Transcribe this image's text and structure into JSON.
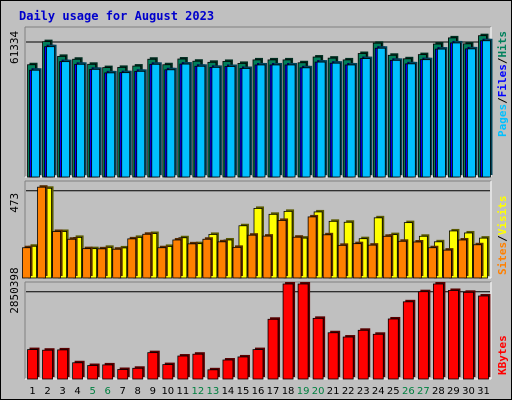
{
  "chart_data": {
    "type": "bar",
    "title": "Daily usage for August 2023",
    "days": [
      "1",
      "2",
      "3",
      "4",
      "5",
      "6",
      "7",
      "8",
      "9",
      "10",
      "11",
      "12",
      "13",
      "14",
      "15",
      "16",
      "17",
      "18",
      "19",
      "20",
      "21",
      "22",
      "23",
      "24",
      "25",
      "26",
      "27",
      "28",
      "29",
      "30",
      "31"
    ],
    "weekend_days": [
      "5",
      "6",
      "12",
      "13",
      "19",
      "20",
      "26",
      "27"
    ],
    "colors": {
      "title": "#0000cc",
      "weekday_label": "#000000",
      "weekend_label": "#008040",
      "hits": "#00805c",
      "files": "#0000ff",
      "pages": "#00c0ff",
      "visits": "#ffff00",
      "sites": "#ff8000",
      "kbytes": "#ff0000"
    },
    "panels": [
      {
        "id": "requests",
        "ytick": "61334",
        "ymax": 61334,
        "series": [
          {
            "name": "Hits",
            "values": [
              51000,
              61500,
              54800,
              53500,
              51200,
              49700,
              49800,
              50400,
              53500,
              51000,
              53600,
              52600,
              52100,
              52500,
              51600,
              53200,
              53200,
              53200,
              51900,
              54500,
              54000,
              53200,
              56100,
              60800,
              55300,
              53700,
              55600,
              60400,
              63200,
              60500,
              64200
            ]
          },
          {
            "name": "Files",
            "values": [
              48500,
              59200,
              52400,
              51200,
              48900,
              47300,
              47400,
              48000,
              51200,
              48700,
              51300,
              50300,
              49800,
              50200,
              49300,
              50900,
              50900,
              50900,
              49600,
              52200,
              51700,
              50900,
              53800,
              58500,
              53000,
              51400,
              53300,
              58100,
              60900,
              58200,
              61900
            ]
          },
          {
            "name": "Pages",
            "values": [
              48500,
              59200,
              52400,
              51200,
              48900,
              47300,
              47400,
              48000,
              51200,
              48700,
              51300,
              50300,
              49800,
              50200,
              49300,
              50900,
              50900,
              50900,
              49600,
              52200,
              51700,
              50900,
              53800,
              58500,
              53000,
              51400,
              53300,
              58100,
              60900,
              58200,
              61900
            ]
          }
        ],
        "legend": [
          "Pages",
          "Files",
          "Hits"
        ]
      },
      {
        "id": "visitors",
        "ytick": "473",
        "ymax": 473,
        "series": [
          {
            "name": "Visits",
            "values": [
              172,
              486,
              252,
              220,
              159,
              166,
              163,
              220,
              241,
              171,
              218,
              186,
              236,
              206,
              283,
              377,
              345,
              361,
              216,
              358,
              307,
              302,
              213,
              326,
              235,
              300,
              226,
              196,
              255,
              244,
              216
            ]
          },
          {
            "name": "Sites",
            "values": [
              164,
              492,
              252,
              210,
              159,
              158,
              156,
              212,
              237,
              164,
              206,
              185,
              210,
              196,
              166,
              232,
              227,
              312,
              221,
              331,
              234,
              177,
              186,
              178,
              226,
              199,
              195,
              164,
              151,
              206,
              180
            ]
          }
        ],
        "legend": [
          "Sites",
          "Visits"
        ]
      },
      {
        "id": "traffic",
        "ytick": "2850398",
        "ymax": 2850398,
        "series": [
          {
            "name": "KBytes",
            "values": [
              960000,
              940000,
              950000,
              530000,
              440000,
              460000,
              310000,
              350000,
              860000,
              470000,
              750000,
              810000,
              300000,
              620000,
              720000,
              960000,
              1950000,
              3170000,
              3110000,
              1980000,
              1510000,
              1370000,
              1590000,
              1460000,
              1960000,
              2520000,
              2850000,
              3250000,
              2890000,
              2830000,
              2710000
            ]
          }
        ],
        "legend": [
          "KBytes"
        ]
      }
    ]
  }
}
